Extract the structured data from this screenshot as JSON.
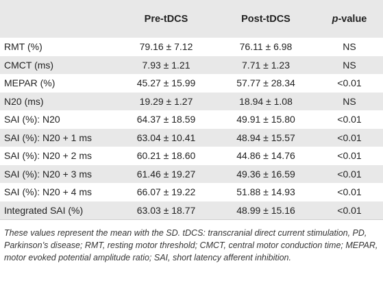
{
  "table": {
    "headers": {
      "label": "",
      "pre": "Pre-tDCS",
      "post": "Post-tDCS",
      "p_italic": "p",
      "p_rest": "-value"
    },
    "rows": [
      {
        "label": "RMT (%)",
        "pre": "79.16 ± 7.12",
        "post": "76.11 ± 6.98",
        "p": "NS"
      },
      {
        "label": "CMCT (ms)",
        "pre": "7.93 ± 1.21",
        "post": "7.71 ± 1.23",
        "p": "NS"
      },
      {
        "label": "MEPAR (%)",
        "pre": "45.27 ± 15.99",
        "post": "57.77 ± 28.34",
        "p": "<0.01"
      },
      {
        "label": "N20 (ms)",
        "pre": "19.29 ± 1.27",
        "post": "18.94 ± 1.08",
        "p": "NS"
      },
      {
        "label": "SAI (%): N20",
        "pre": "64.37 ± 18.59",
        "post": "49.91 ± 15.80",
        "p": "<0.01"
      },
      {
        "label": "SAI (%): N20 + 1 ms",
        "pre": "63.04 ± 10.41",
        "post": "48.94 ± 15.57",
        "p": "<0.01"
      },
      {
        "label": "SAI (%): N20 + 2 ms",
        "pre": "60.21 ± 18.60",
        "post": "44.86 ± 14.76",
        "p": "<0.01"
      },
      {
        "label": "SAI (%): N20 + 3 ms",
        "pre": "61.46 ± 19.27",
        "post": "49.36 ± 16.59",
        "p": "<0.01"
      },
      {
        "label": "SAI (%): N20 + 4 ms",
        "pre": "66.07 ± 19.22",
        "post": "51.88 ± 14.93",
        "p": "<0.01"
      },
      {
        "label": "Integrated SAI (%)",
        "pre": "63.03 ± 18.77",
        "post": "48.99 ± 15.16",
        "p": "<0.01"
      }
    ]
  },
  "footnote": "These values represent the mean with the SD. tDCS: transcranial direct current stimulation, PD, Parkinson’s disease; RMT, resting motor threshold; CMCT, central motor conduction time; MEPAR, motor evoked potential amplitude ratio; SAI, short latency afferent inhibition.",
  "colors": {
    "stripe": "#e8e8e8",
    "text": "#222222"
  }
}
